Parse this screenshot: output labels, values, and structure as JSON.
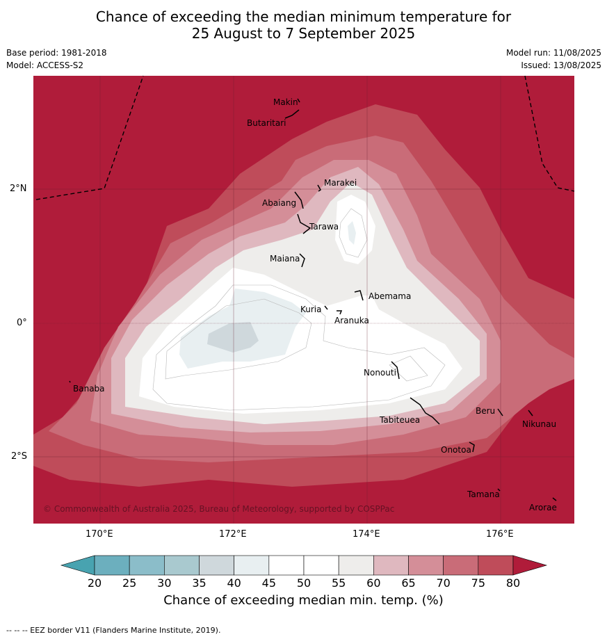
{
  "title": {
    "line1": "Chance of exceeding the median minimum temperature for",
    "line2": "25 August to 7 September 2025"
  },
  "meta": {
    "base_period": "Base period: 1981-2018",
    "model": "Model: ACCESS-S2",
    "model_run": "Model run: 11/08/2025",
    "issued": "Issued: 13/08/2025"
  },
  "map": {
    "x_ticks": [
      "170°E",
      "172°E",
      "174°E",
      "176°E"
    ],
    "y_ticks": [
      "2°N",
      "0°",
      "2°S"
    ],
    "copyright": "© Commonwealth of Australia 2025, Bureau of Meteorology, supported by COSPPac",
    "places": [
      "Makin",
      "Butaritari",
      "Marakei",
      "Abaiang",
      "Tarawa",
      "Maiana",
      "Abemama",
      "Kuria",
      "Aranuka",
      "Nonouti",
      "Banaba",
      "Tabiteuea",
      "Beru",
      "Nikunau",
      "Onotoa",
      "Tamana",
      "Arorae"
    ]
  },
  "colorbar": {
    "ticks": [
      "20",
      "25",
      "30",
      "35",
      "40",
      "45",
      "50",
      "55",
      "60",
      "65",
      "70",
      "75",
      "80"
    ],
    "label": "Chance of exceeding median min. temp. (%)",
    "colors": [
      "#6cafbe",
      "#8bbdc9",
      "#a9c9cf",
      "#cfd8dc",
      "#e8eff1",
      "#ffffff",
      "#ffffff",
      "#eeedeb",
      "#dfb8bf",
      "#d48e98",
      "#c96c78",
      "#bf4c5a",
      "#b01c3a"
    ],
    "under_color": "#48a3b0",
    "over_color": "#b01c3a"
  },
  "footer": "--  --  -- EEZ border V11 (Flanders Marine Institute, 2019)."
}
